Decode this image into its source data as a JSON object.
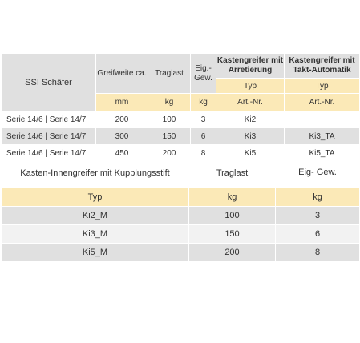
{
  "table1": {
    "label": "SSI Schäfer",
    "headers": {
      "greifweite": "Greifweite ca.",
      "traglast": "Traglast",
      "gew": "Eig.- Gew.",
      "arretierung": "Kastengreifer mit Arretierung",
      "takt": "Kastengreifer mit Takt-Automatik"
    },
    "typ_row": {
      "arretierung": "Typ",
      "takt": "Typ"
    },
    "unit_row": {
      "greifweite": "mm",
      "traglast": "kg",
      "gew": "kg",
      "arretierung": "Art.-Nr.",
      "takt": "Art.-Nr."
    },
    "rows": [
      {
        "serie": "Serie 14/6 | Serie 14/7",
        "greifweite": "200",
        "traglast": "100",
        "gew": "3",
        "arretierung": "Ki2",
        "takt": ""
      },
      {
        "serie": "Serie 14/6 | Serie 14/7",
        "greifweite": "300",
        "traglast": "150",
        "gew": "6",
        "arretierung": "Ki3",
        "takt": "Ki3_TA"
      },
      {
        "serie": "Serie 14/6 | Serie 14/7",
        "greifweite": "450",
        "traglast": "200",
        "gew": "8",
        "arretierung": "Ki5",
        "takt": "Ki5_TA"
      }
    ]
  },
  "table2": {
    "headers": {
      "title": "Kasten-Innengreifer mit Kupplungsstift",
      "traglast": "Traglast",
      "gew": "Eig- Gew."
    },
    "unit_row": {
      "typ": "Typ",
      "traglast": "kg",
      "gew": "kg"
    },
    "rows": [
      {
        "typ": "Ki2_M",
        "traglast": "100",
        "gew": "3"
      },
      {
        "typ": "Ki3_M",
        "traglast": "150",
        "gew": "6"
      },
      {
        "typ": "Ki5_M",
        "traglast": "200",
        "gew": "8"
      }
    ]
  }
}
